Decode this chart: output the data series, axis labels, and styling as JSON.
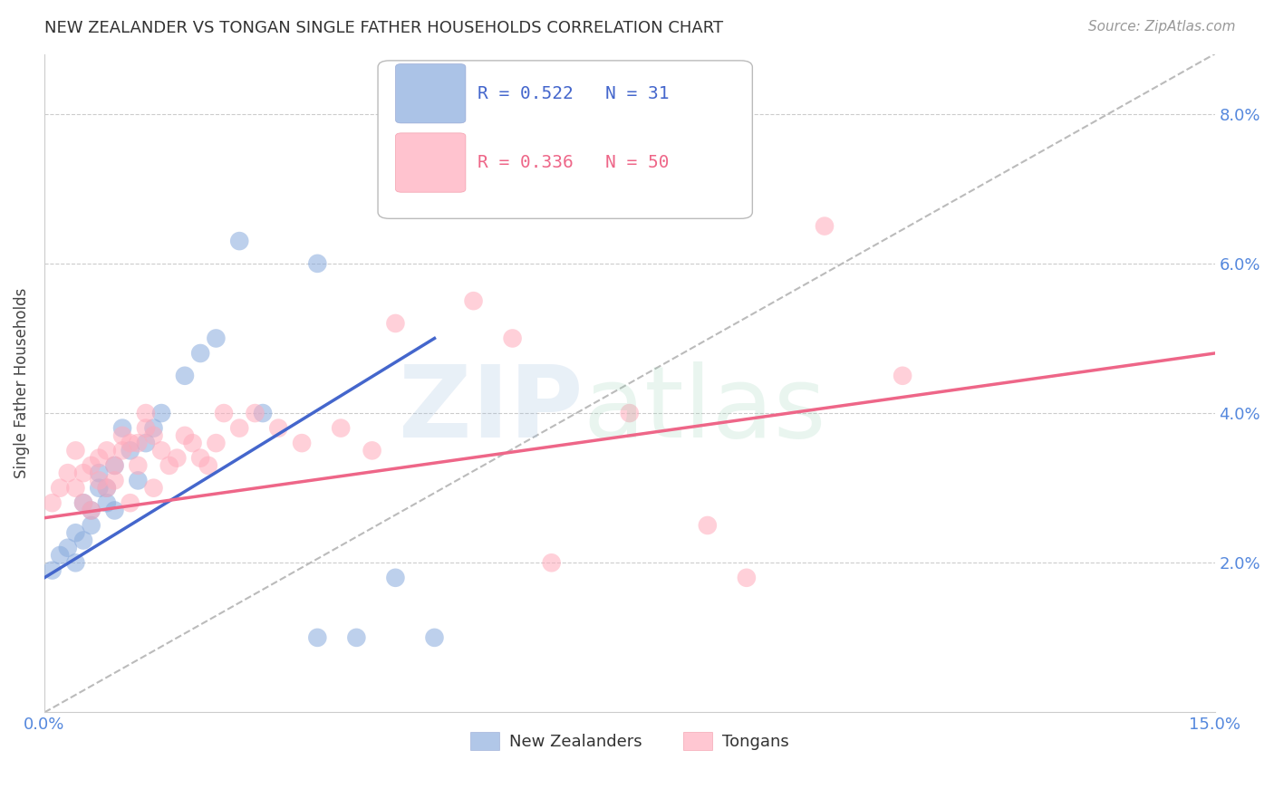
{
  "title": "NEW ZEALANDER VS TONGAN SINGLE FATHER HOUSEHOLDS CORRELATION CHART",
  "source": "Source: ZipAtlas.com",
  "ylabel": "Single Father Households",
  "xlim": [
    0.0,
    0.15
  ],
  "ylim": [
    0.0,
    0.088
  ],
  "nz_R": 0.522,
  "nz_N": 31,
  "tong_R": 0.336,
  "tong_N": 50,
  "nz_color": "#88AADD",
  "tong_color": "#FFAABB",
  "nz_line_color": "#4466CC",
  "tong_line_color": "#EE6688",
  "diagonal_color": "#BBBBBB",
  "nz_points_x": [
    0.001,
    0.002,
    0.003,
    0.004,
    0.004,
    0.005,
    0.005,
    0.006,
    0.006,
    0.007,
    0.007,
    0.008,
    0.008,
    0.009,
    0.009,
    0.01,
    0.011,
    0.012,
    0.013,
    0.014,
    0.015,
    0.018,
    0.02,
    0.022,
    0.025,
    0.028,
    0.035,
    0.04,
    0.045,
    0.05,
    0.035
  ],
  "nz_points_y": [
    0.019,
    0.021,
    0.022,
    0.02,
    0.024,
    0.023,
    0.028,
    0.025,
    0.027,
    0.03,
    0.032,
    0.028,
    0.03,
    0.027,
    0.033,
    0.038,
    0.035,
    0.031,
    0.036,
    0.038,
    0.04,
    0.045,
    0.048,
    0.05,
    0.063,
    0.04,
    0.01,
    0.01,
    0.018,
    0.01,
    0.06
  ],
  "tong_points_x": [
    0.001,
    0.002,
    0.003,
    0.004,
    0.004,
    0.005,
    0.005,
    0.006,
    0.006,
    0.007,
    0.007,
    0.008,
    0.008,
    0.009,
    0.009,
    0.01,
    0.01,
    0.011,
    0.011,
    0.012,
    0.012,
    0.013,
    0.013,
    0.014,
    0.014,
    0.015,
    0.016,
    0.017,
    0.018,
    0.019,
    0.02,
    0.021,
    0.022,
    0.023,
    0.025,
    0.027,
    0.03,
    0.033,
    0.038,
    0.042,
    0.045,
    0.048,
    0.055,
    0.06,
    0.065,
    0.075,
    0.085,
    0.09,
    0.1,
    0.11
  ],
  "tong_points_y": [
    0.028,
    0.03,
    0.032,
    0.035,
    0.03,
    0.032,
    0.028,
    0.027,
    0.033,
    0.031,
    0.034,
    0.03,
    0.035,
    0.033,
    0.031,
    0.035,
    0.037,
    0.036,
    0.028,
    0.033,
    0.036,
    0.04,
    0.038,
    0.037,
    0.03,
    0.035,
    0.033,
    0.034,
    0.037,
    0.036,
    0.034,
    0.033,
    0.036,
    0.04,
    0.038,
    0.04,
    0.038,
    0.036,
    0.038,
    0.035,
    0.052,
    0.07,
    0.055,
    0.05,
    0.02,
    0.04,
    0.025,
    0.018,
    0.065,
    0.045
  ],
  "nz_line_x0": 0.0,
  "nz_line_y0": 0.018,
  "nz_line_x1": 0.05,
  "nz_line_y1": 0.05,
  "tong_line_x0": 0.0,
  "tong_line_y0": 0.026,
  "tong_line_x1": 0.15,
  "tong_line_y1": 0.048
}
